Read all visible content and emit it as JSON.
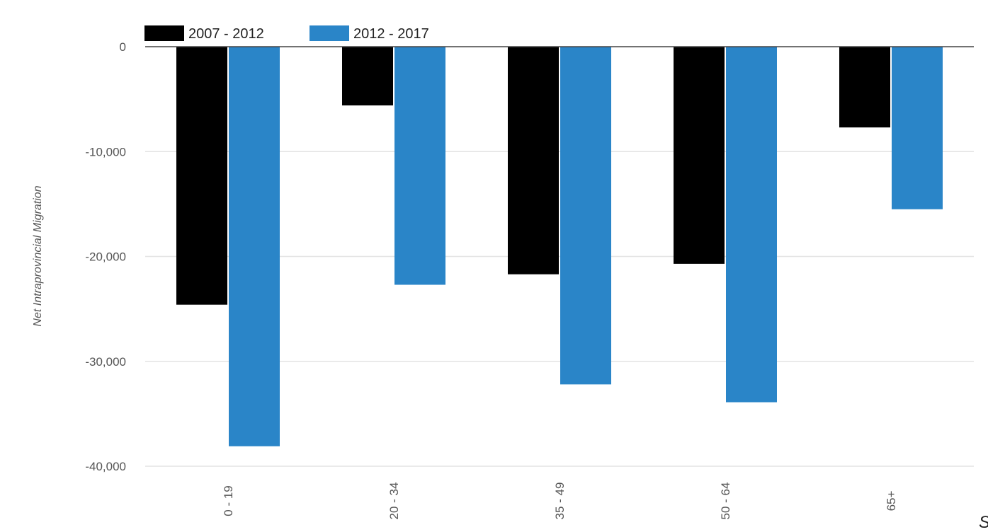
{
  "chart_data": {
    "type": "bar",
    "ylabel": "Net Intraprovincial Migration",
    "categories": [
      "0 - 19",
      "20 - 34",
      "35 - 49",
      "50 - 64",
      "65+"
    ],
    "series": [
      {
        "name": "2007 - 2012",
        "values": [
          -24600,
          -5600,
          -21700,
          -20700,
          -7700
        ]
      },
      {
        "name": "2012 - 2017",
        "values": [
          -38100,
          -22700,
          -32200,
          -33900,
          -15500
        ]
      }
    ],
    "ylim": [
      -40000,
      0
    ],
    "yticks": [
      0,
      -10000,
      -20000,
      -30000,
      -40000
    ],
    "ytick_labels": [
      "0",
      "-10,000",
      "-20,000",
      "-30,000",
      "-40,000"
    ],
    "grid": true,
    "legend_position": "top-left",
    "source_fragment": "S"
  },
  "colors": {
    "series": [
      "#000000",
      "#2a85c8"
    ],
    "grid": "#e3e3e3",
    "zero_line": "#444444"
  }
}
